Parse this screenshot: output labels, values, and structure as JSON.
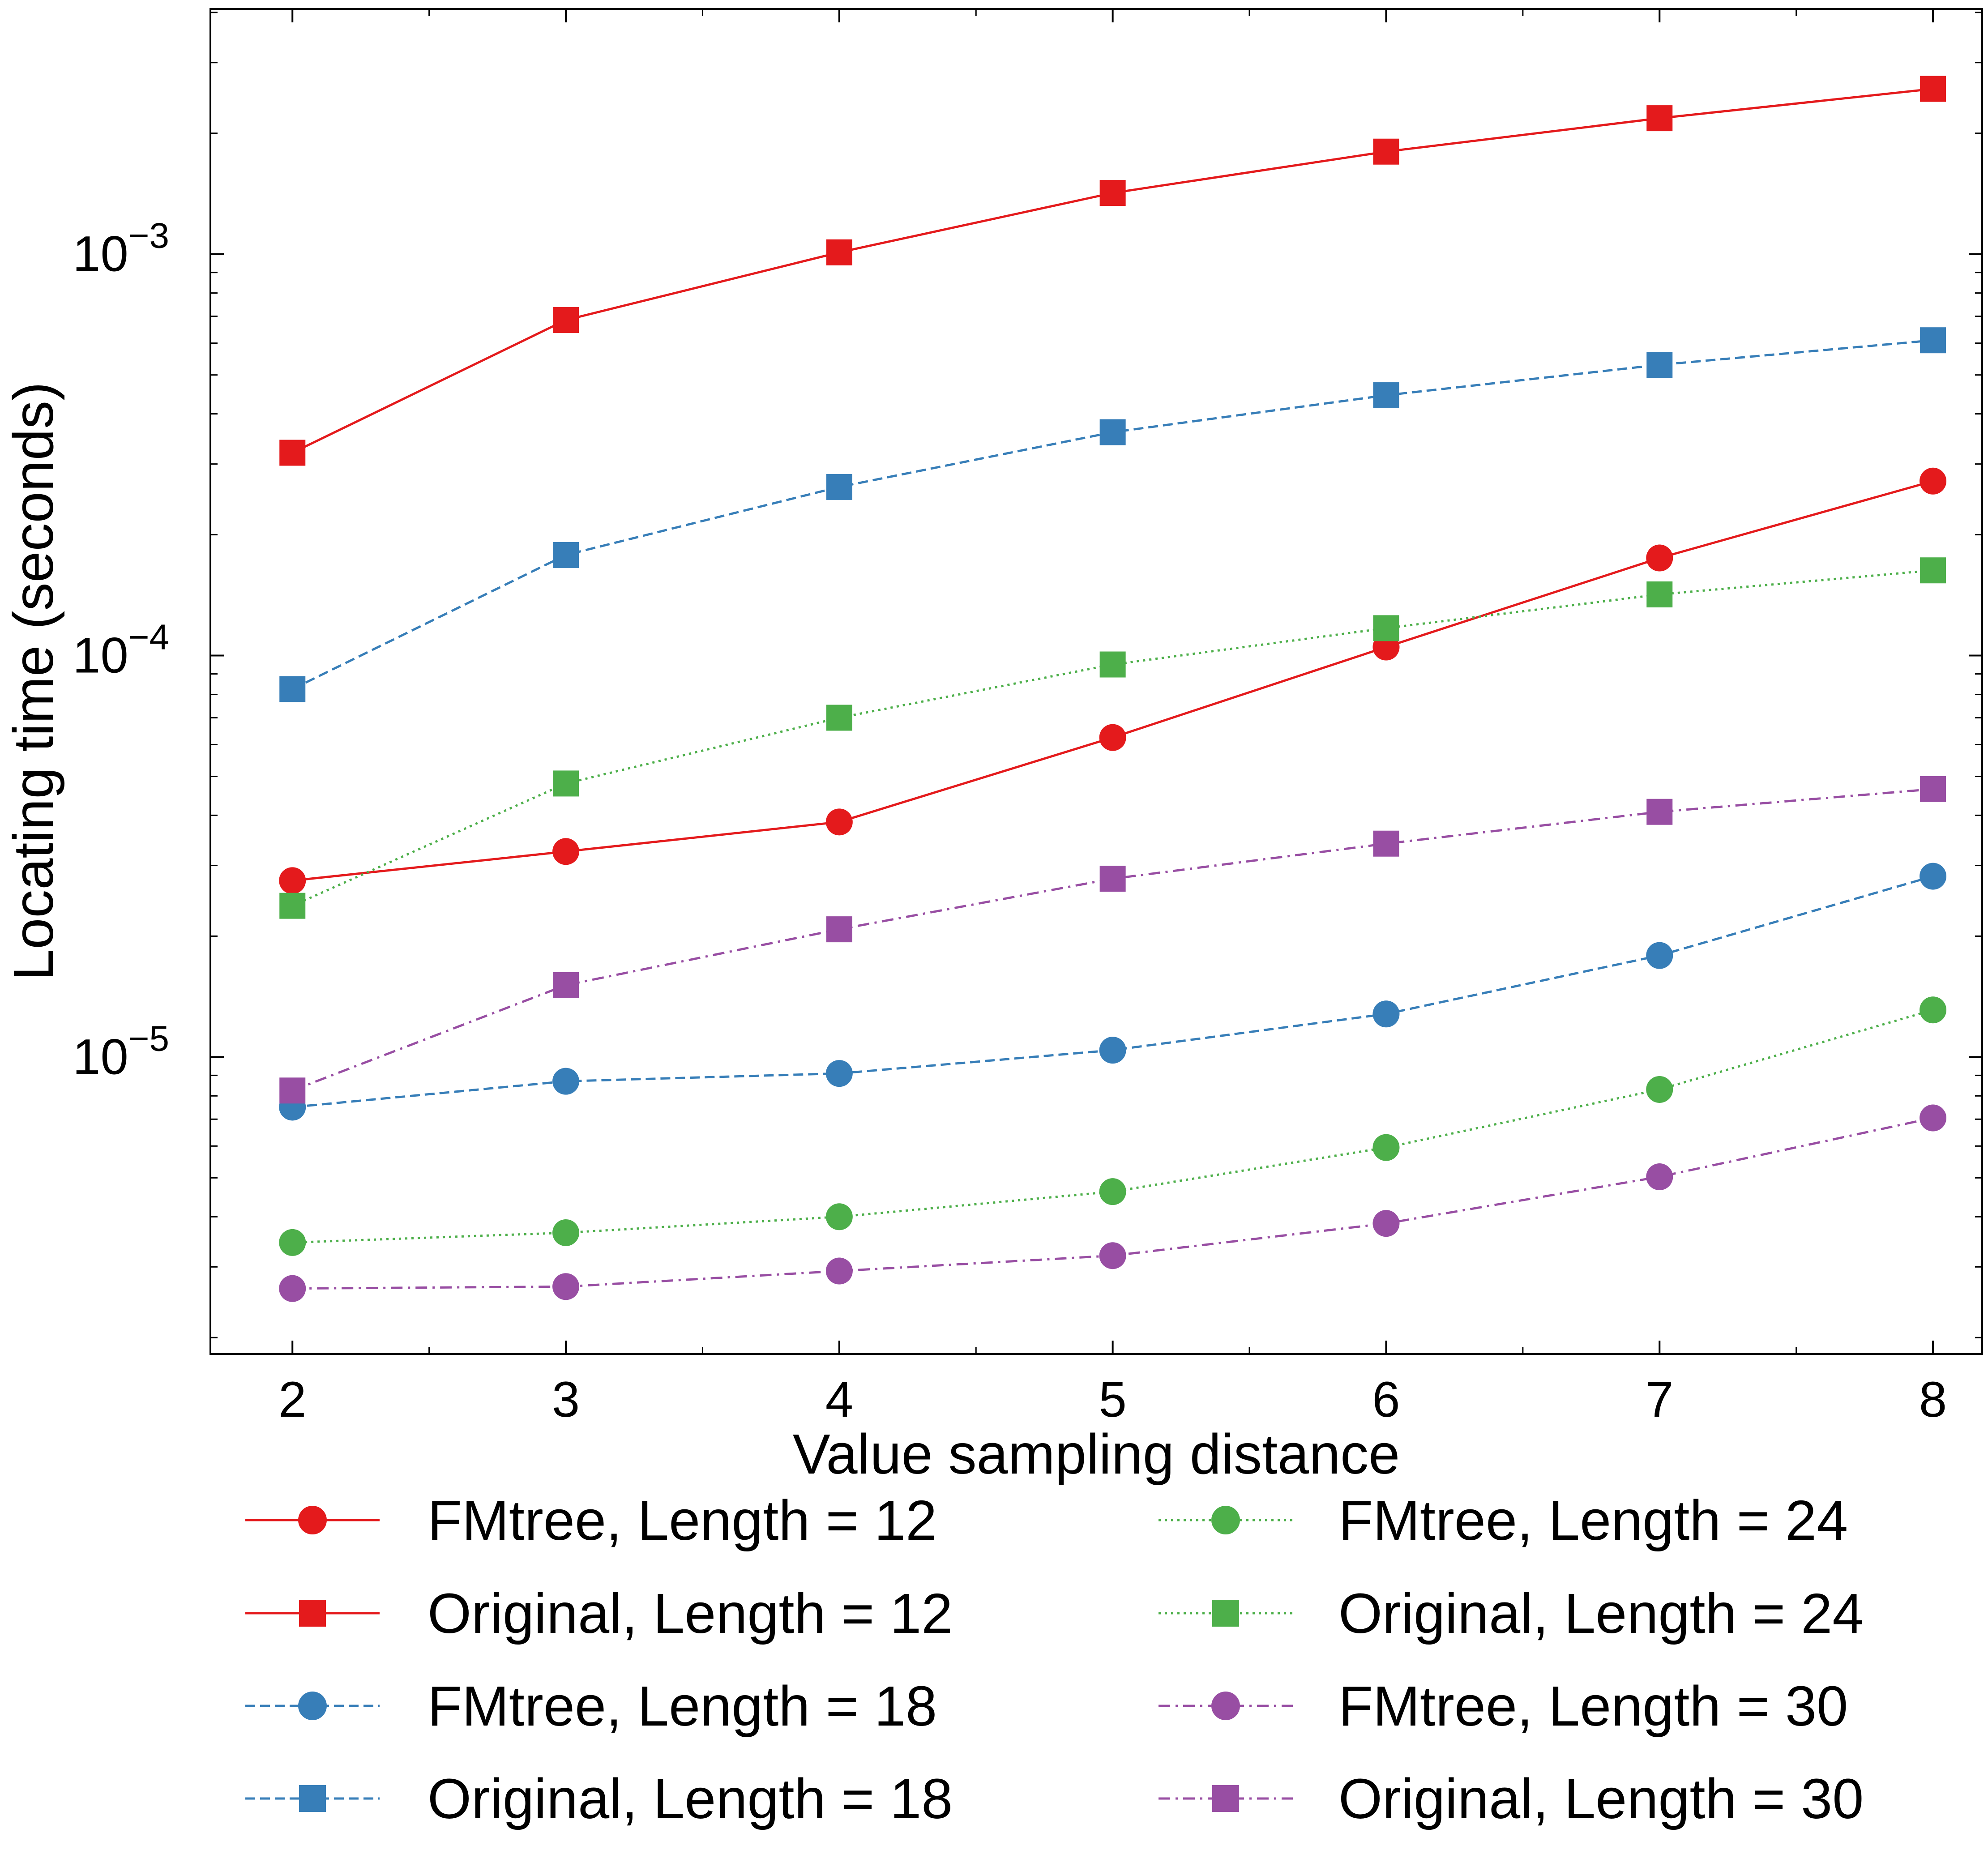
{
  "chart_data": {
    "type": "line",
    "title": "",
    "xlabel": "Value sampling distance",
    "ylabel": "Locating time (seconds)",
    "yscale": "log",
    "xlim": [
      1.7,
      8.18
    ],
    "ylim": [
      1.82e-06,
      0.00408
    ],
    "x": [
      2,
      3,
      4,
      5,
      6,
      7,
      8
    ],
    "x_tick_labels": [
      "2",
      "3",
      "4",
      "5",
      "6",
      "7",
      "8"
    ],
    "y_tick_labels": [
      {
        "value": 1e-05,
        "base": "10",
        "exp": "−5"
      },
      {
        "value": 0.0001,
        "base": "10",
        "exp": "−4"
      },
      {
        "value": 0.001,
        "base": "10",
        "exp": "−3"
      }
    ],
    "grid": false,
    "legend_position": "below plot, two columns",
    "series": [
      {
        "name": "FMtree, Length = 12",
        "color": "#e41a1c",
        "marker": "circle",
        "dash": "solid",
        "values": [
          2.75e-05,
          3.25e-05,
          3.85e-05,
          6.25e-05,
          0.000105,
          0.000175,
          0.000272
        ]
      },
      {
        "name": "Original, Length = 12",
        "color": "#e41a1c",
        "marker": "square",
        "dash": "solid",
        "values": [
          0.00032,
          0.000685,
          0.00101,
          0.00142,
          0.0018,
          0.00218,
          0.00258
        ]
      },
      {
        "name": "FMtree, Length = 18",
        "color": "#377eb8",
        "marker": "circle",
        "dash": "dashed",
        "values": [
          7.5e-06,
          8.7e-06,
          9.1e-06,
          1.04e-05,
          1.28e-05,
          1.79e-05,
          2.82e-05
        ]
      },
      {
        "name": "Original, Length = 18",
        "color": "#377eb8",
        "marker": "square",
        "dash": "dashed",
        "values": [
          8.25e-05,
          0.000178,
          0.000263,
          0.00036,
          0.000445,
          0.00053,
          0.00061
        ]
      },
      {
        "name": "FMtree, Length = 24",
        "color": "#4daf4a",
        "marker": "circle",
        "dash": "dotted",
        "values": [
          3.45e-06,
          3.65e-06,
          4e-06,
          4.62e-06,
          5.95e-06,
          8.3e-06,
          1.31e-05
        ]
      },
      {
        "name": "Original, Length = 24",
        "color": "#4daf4a",
        "marker": "square",
        "dash": "dotted",
        "values": [
          2.38e-05,
          4.8e-05,
          7e-05,
          9.5e-05,
          0.000117,
          0.000142,
          0.000163
        ]
      },
      {
        "name": "FMtree, Length = 30",
        "color": "#984ea3",
        "marker": "circle",
        "dash": "dashdot",
        "values": [
          2.65e-06,
          2.68e-06,
          2.93e-06,
          3.2e-06,
          3.85e-06,
          5.03e-06,
          7.05e-06
        ]
      },
      {
        "name": "Original, Length = 30",
        "color": "#984ea3",
        "marker": "square",
        "dash": "dashdot",
        "values": [
          8.25e-06,
          1.51e-05,
          2.08e-05,
          2.78e-05,
          3.4e-05,
          4.08e-05,
          4.65e-05
        ]
      }
    ]
  }
}
